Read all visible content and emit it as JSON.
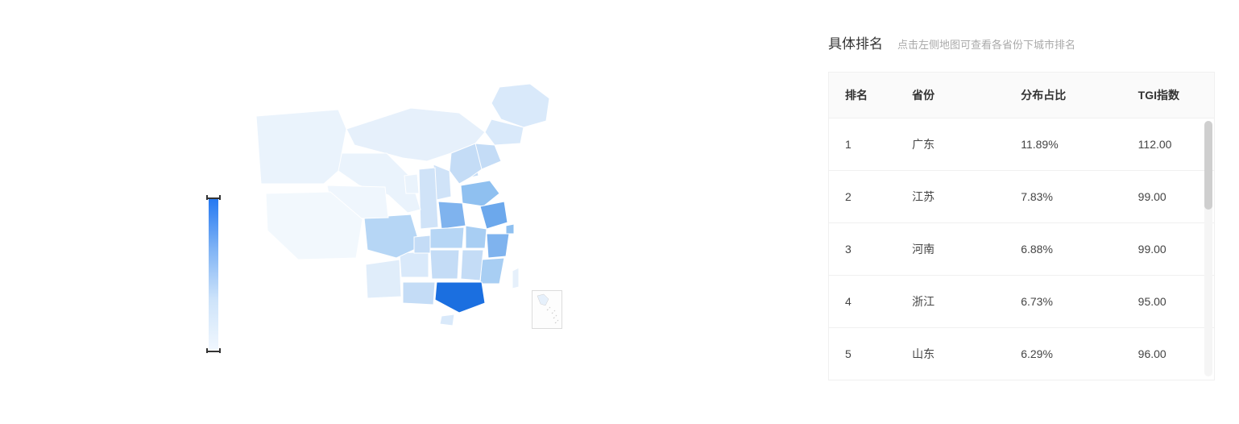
{
  "map": {
    "legend": {
      "gradient_top": "#2478f2",
      "gradient_upper": "#7fb3f5",
      "gradient_lower": "#cde3fa",
      "gradient_bottom": "#f0f7fe"
    },
    "provinces": [
      {
        "name": "heilongjiang",
        "fill": "#d9e9fa"
      },
      {
        "name": "jilin",
        "fill": "#d9e9fa"
      },
      {
        "name": "liaoning",
        "fill": "#c4dcf6"
      },
      {
        "name": "neimenggu",
        "fill": "#e6f0fb"
      },
      {
        "name": "beijing",
        "fill": "#a8cef3"
      },
      {
        "name": "tianjin",
        "fill": "#c4dcf6"
      },
      {
        "name": "hebei",
        "fill": "#c4dcf6"
      },
      {
        "name": "shanxi",
        "fill": "#d0e3f8"
      },
      {
        "name": "shandong",
        "fill": "#8fc0f0"
      },
      {
        "name": "henan",
        "fill": "#7fb3ee"
      },
      {
        "name": "jiangsu",
        "fill": "#6ca8ec"
      },
      {
        "name": "anhui",
        "fill": "#a8cef3"
      },
      {
        "name": "shanghai",
        "fill": "#8fc0f0"
      },
      {
        "name": "zhejiang",
        "fill": "#7fb3ee"
      },
      {
        "name": "fujian",
        "fill": "#a8cef3"
      },
      {
        "name": "jiangxi",
        "fill": "#c4dcf6"
      },
      {
        "name": "hubei",
        "fill": "#b6d6f5"
      },
      {
        "name": "hunan",
        "fill": "#c4dcf6"
      },
      {
        "name": "guangdong",
        "fill": "#1b6fe0"
      },
      {
        "name": "guangxi",
        "fill": "#c4dcf6"
      },
      {
        "name": "hainan",
        "fill": "#d9e9fa"
      },
      {
        "name": "guizhou",
        "fill": "#d9e9fa"
      },
      {
        "name": "yunnan",
        "fill": "#e0edfa"
      },
      {
        "name": "sichuan",
        "fill": "#b6d6f5"
      },
      {
        "name": "chongqing",
        "fill": "#c4dcf6"
      },
      {
        "name": "shaanxi",
        "fill": "#d0e3f8"
      },
      {
        "name": "gansu",
        "fill": "#eaf3fc"
      },
      {
        "name": "ningxia",
        "fill": "#eaf3fc"
      },
      {
        "name": "qinghai",
        "fill": "#eff6fd"
      },
      {
        "name": "xinjiang",
        "fill": "#eaf3fc"
      },
      {
        "name": "xizang",
        "fill": "#f2f8fd"
      },
      {
        "name": "taiwan",
        "fill": "#e6f0fb"
      }
    ],
    "stroke": "#ffffff",
    "background": "#ffffff"
  },
  "table": {
    "title": "具体排名",
    "subtitle": "点击左侧地图可查看各省份下城市排名",
    "columns": {
      "rank": "排名",
      "province": "省份",
      "percentage": "分布占比",
      "tgi": "TGI指数"
    },
    "rows": [
      {
        "rank": "1",
        "province": "广东",
        "percentage": "11.89%",
        "tgi": "112.00"
      },
      {
        "rank": "2",
        "province": "江苏",
        "percentage": "7.83%",
        "tgi": "99.00"
      },
      {
        "rank": "3",
        "province": "河南",
        "percentage": "6.88%",
        "tgi": "99.00"
      },
      {
        "rank": "4",
        "province": "浙江",
        "percentage": "6.73%",
        "tgi": "95.00"
      },
      {
        "rank": "5",
        "province": "山东",
        "percentage": "6.29%",
        "tgi": "96.00"
      }
    ]
  },
  "colors": {
    "header_bg": "#fafafa",
    "border": "#f0f0f0",
    "text_primary": "#333333",
    "text_secondary": "#aaaaaa",
    "scrollbar_track": "#f5f5f5",
    "scrollbar_thumb": "#cfcfcf"
  }
}
